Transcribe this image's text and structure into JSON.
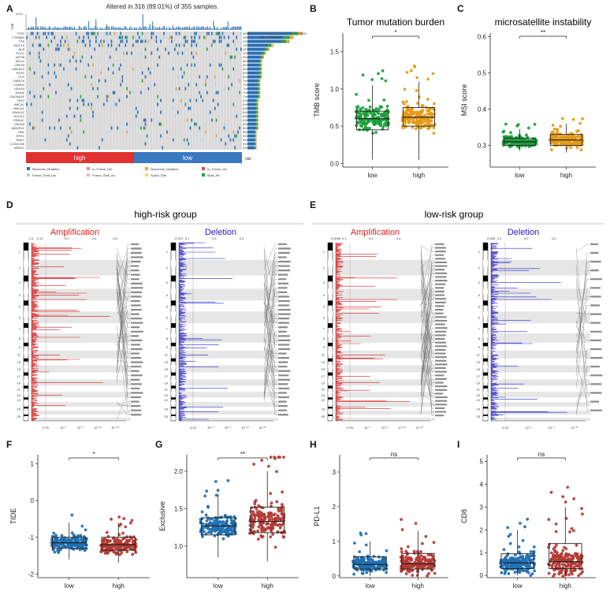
{
  "panel_labels": {
    "A": "A",
    "B": "B",
    "C": "C",
    "D": "D",
    "E": "E",
    "F": "F",
    "G": "G",
    "H": "H",
    "I": "I"
  },
  "colors": {
    "low_green": "#1a9e3a",
    "high_orange": "#e69a14",
    "low_blue": "#1f6fb2",
    "high_red": "#b33a33",
    "amp": "#d42020",
    "del": "#2828c8",
    "risk_high": "#e03030",
    "risk_low": "#3a78c0"
  },
  "panelA": {
    "title": "Altered in 316 (89.01%) of 355 samples.",
    "ytop": "1270",
    "ylabel": "TMB",
    "bar_axis_label": "No. of samples",
    "bar_axis_ticks": [
      "0",
      "100"
    ],
    "genes": [
      "TP53",
      "CTNNB1",
      "TTN",
      "MUC16",
      "ALB",
      "PCLO",
      "APOB",
      "MUC4",
      "LRP1B",
      "ABCA13",
      "RYR2",
      "FLG",
      "OBSCN",
      "CSMD3",
      "USH2A",
      "AXIN1",
      "CACNA1E",
      "FAT3",
      "ABCA7",
      "HMCN1",
      "DNAH11",
      "DOCK2",
      "PRKDC",
      "USH2A",
      "ADGRV1",
      "RB1",
      "RYR1",
      "BAP1",
      "CCDC168",
      "HERC2"
    ],
    "pcts": [
      "30%",
      "25%",
      "23%",
      "14%",
      "12%",
      "10%",
      "9%",
      "8%",
      "8%",
      "8%",
      "8%",
      "8%",
      "7%",
      "7%",
      "7%",
      "7%",
      "7%",
      "6%",
      "6%",
      "6%",
      "6%",
      "6%",
      "6%",
      "6%",
      "6%",
      "5%",
      "5%",
      "5%",
      "5%",
      "5%"
    ],
    "risk_high": "high",
    "risk_low": "low",
    "risk_label": "risk",
    "legend": [
      "Missense_Mutation",
      "Frame_Shift_Del",
      "In_Frame_Del",
      "Frame_Shift_Ins",
      "Nonsense_Mutation",
      "Splice_Site",
      "In_Frame_Ins",
      "Multi_Hit"
    ]
  },
  "panelD": {
    "title": "high-risk group",
    "amp": "Amplification",
    "del": "Deletion",
    "amp_top": [
      "0.1",
      "0.13",
      "0.2",
      "0.4",
      "0.8"
    ],
    "del_top": [
      "0.012",
      "0.1",
      "0.2",
      "0.4"
    ],
    "bottom": [
      "0.25",
      "10⁻²",
      "10⁻⁵",
      "10⁻¹⁰",
      "10⁻⁵⁰"
    ],
    "bottom_del": [
      "0.25",
      "10⁻²",
      "10⁻⁵",
      "10⁻¹⁰",
      "10⁻²⁰"
    ]
  },
  "panelE": {
    "title": "low-risk group",
    "amp": "Amplification",
    "del": "Deletion",
    "amp_top": [
      "0.0096",
      "0.1",
      "0.2",
      "0.4"
    ],
    "del_top": [
      "0.008",
      "0.1",
      "0.2",
      "0.4"
    ],
    "bottom": [
      "0.25",
      "10⁻²",
      "10⁻⁵",
      "10⁻¹⁰",
      "10⁻²⁰"
    ],
    "bottom_del": [
      "0.25",
      "10⁻²",
      "10⁻⁵",
      "10⁻¹⁰"
    ]
  },
  "chromosomes": [
    "1",
    "2",
    "3",
    "4",
    "5",
    "6",
    "7",
    "8",
    "9",
    "11",
    "13",
    "15",
    "17",
    "19",
    "21",
    "10",
    "12",
    "14",
    "16",
    "18",
    "20",
    "22"
  ],
  "chart_data": [
    {
      "panel": "B",
      "type": "scatter",
      "title": "Tumor mutation burden",
      "xlabel": "",
      "ylabel": "TMB score",
      "categories": [
        "low",
        "high"
      ],
      "ylim": [
        -0.05,
        1.75
      ],
      "yticks": [
        "0.0",
        "0.5",
        "1.0",
        "1.5"
      ],
      "significance": "*",
      "box": [
        {
          "q1": 0.45,
          "median": 0.6,
          "q3": 0.7,
          "lo": 0.05,
          "hi": 1.05
        },
        {
          "q1": 0.5,
          "median": 0.62,
          "q3": 0.75,
          "lo": 0.05,
          "hi": 1.1
        }
      ]
    },
    {
      "panel": "C",
      "type": "scatter",
      "title": "microsatellite instability",
      "xlabel": "",
      "ylabel": "MSI score",
      "categories": [
        "low",
        "high"
      ],
      "ylim": [
        0.24,
        0.61
      ],
      "yticks": [
        "0.3",
        "0.4",
        "0.5",
        "0.6"
      ],
      "significance": "**",
      "box": [
        {
          "q1": 0.3,
          "median": 0.31,
          "q3": 0.32,
          "lo": 0.285,
          "hi": 0.345
        },
        {
          "q1": 0.3,
          "median": 0.315,
          "q3": 0.33,
          "lo": 0.28,
          "hi": 0.36
        }
      ]
    },
    {
      "panel": "F",
      "type": "scatter",
      "title": "",
      "xlabel": "",
      "ylabel": "TIDE",
      "categories": [
        "low",
        "high"
      ],
      "ylim": [
        -2.1,
        1.25
      ],
      "yticks": [
        "-2",
        "-1",
        "0",
        "1"
      ],
      "significance": "*",
      "box": [
        {
          "q1": -1.3,
          "median": -1.15,
          "q3": -1.0,
          "lo": -1.6,
          "hi": -0.6
        },
        {
          "q1": -1.35,
          "median": -1.2,
          "q3": -1.0,
          "lo": -1.7,
          "hi": -0.6
        }
      ]
    },
    {
      "panel": "G",
      "type": "scatter",
      "title": "",
      "xlabel": "",
      "ylabel": "Exclusive",
      "categories": [
        "low",
        "high"
      ],
      "ylim": [
        0.58,
        2.22
      ],
      "yticks": [
        "1.0",
        "1.5",
        "2.0"
      ],
      "significance": "**",
      "box": [
        {
          "q1": 1.15,
          "median": 1.27,
          "q3": 1.38,
          "lo": 0.85,
          "hi": 1.7
        },
        {
          "q1": 1.18,
          "median": 1.33,
          "q3": 1.52,
          "lo": 0.8,
          "hi": 2.0
        }
      ]
    },
    {
      "panel": "H",
      "type": "scatter",
      "title": "",
      "xlabel": "",
      "ylabel": "PD-L1",
      "categories": [
        "low",
        "high"
      ],
      "ylim": [
        -0.05,
        3.5
      ],
      "yticks": [
        "0",
        "1",
        "2",
        "3"
      ],
      "significance": "ns",
      "box": [
        {
          "q1": 0.2,
          "median": 0.33,
          "q3": 0.55,
          "lo": 0.0,
          "hi": 1.0
        },
        {
          "q1": 0.2,
          "median": 0.35,
          "q3": 0.65,
          "lo": 0.0,
          "hi": 1.3
        }
      ]
    },
    {
      "panel": "I",
      "type": "scatter",
      "title": "",
      "xlabel": "",
      "ylabel": "CD8",
      "categories": [
        "low",
        "high"
      ],
      "ylim": [
        -0.1,
        5.3
      ],
      "yticks": [
        "0",
        "1",
        "2",
        "3",
        "4",
        "5"
      ],
      "significance": "ns",
      "box": [
        {
          "q1": 0.3,
          "median": 0.55,
          "q3": 0.95,
          "lo": 0.0,
          "hi": 2.0
        },
        {
          "q1": 0.3,
          "median": 0.6,
          "q3": 1.4,
          "lo": 0.0,
          "hi": 3.0
        }
      ]
    }
  ]
}
